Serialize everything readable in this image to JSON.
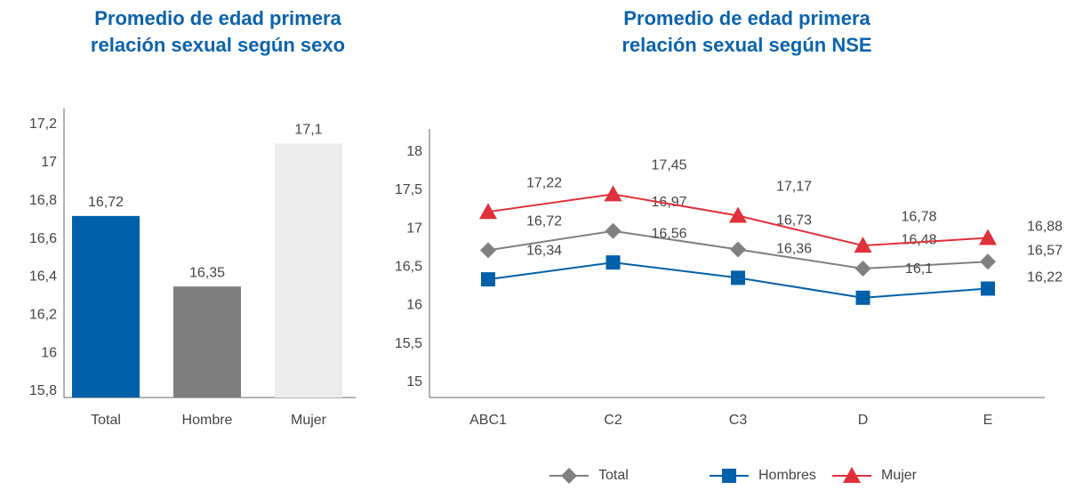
{
  "chart_data": [
    {
      "type": "bar",
      "title": [
        "Promedio de edad primera",
        "relación sexual según sexo"
      ],
      "categories": [
        "Total",
        "Hombre",
        "Mujer"
      ],
      "values": [
        16.72,
        16.35,
        17.1
      ],
      "value_labels": [
        "16,72",
        "16,35",
        "17,1"
      ],
      "colors": [
        "#0060a9",
        "#7f7f7f",
        "#ececec"
      ],
      "ylim": [
        15.8,
        17.2
      ],
      "yticks": [
        {
          "value": 15.8,
          "label": "15,8"
        },
        16,
        {
          "value": 16.2,
          "label": "16,2"
        },
        {
          "value": 16.4,
          "label": "16,4"
        },
        {
          "value": 16.6,
          "label": "16,6"
        },
        {
          "value": 16.8,
          "label": "16,8"
        },
        17,
        {
          "value": 17.2,
          "label": "17,2"
        }
      ]
    },
    {
      "type": "line",
      "title": [
        "Promedio de edad primera",
        "relación sexual según NSE"
      ],
      "categories": [
        "ABC1",
        "C2",
        "C3",
        "D",
        "E"
      ],
      "series": [
        {
          "name": "Total",
          "color": "#808080",
          "marker": "diamond",
          "values": [
            16.72,
            16.97,
            16.73,
            16.48,
            16.57
          ],
          "value_labels": [
            "16,72",
            "16,97",
            "16,73",
            "16,48",
            "16,57"
          ]
        },
        {
          "name": "Hombres",
          "color": "#0060a9",
          "marker": "square",
          "values": [
            16.34,
            16.56,
            16.36,
            16.1,
            16.22
          ],
          "value_labels": [
            "16,34",
            "16,56",
            "16,36",
            "16,1",
            "16,22"
          ]
        },
        {
          "name": "Mujer",
          "color": "#e0303a",
          "marker": "triangle",
          "values": [
            17.22,
            17.45,
            17.17,
            16.78,
            16.88
          ],
          "value_labels": [
            "17,22",
            "17,45",
            "17,17",
            "16,78",
            "16,88"
          ]
        }
      ],
      "ylim": [
        14.8,
        18.3
      ],
      "yticks": [
        15,
        {
          "value": 15.5,
          "label": "15,5"
        },
        16,
        {
          "value": 16.5,
          "label": "16,5"
        },
        17,
        {
          "value": 17.5,
          "label": "17,5"
        },
        18
      ],
      "legend": "bottom"
    }
  ]
}
